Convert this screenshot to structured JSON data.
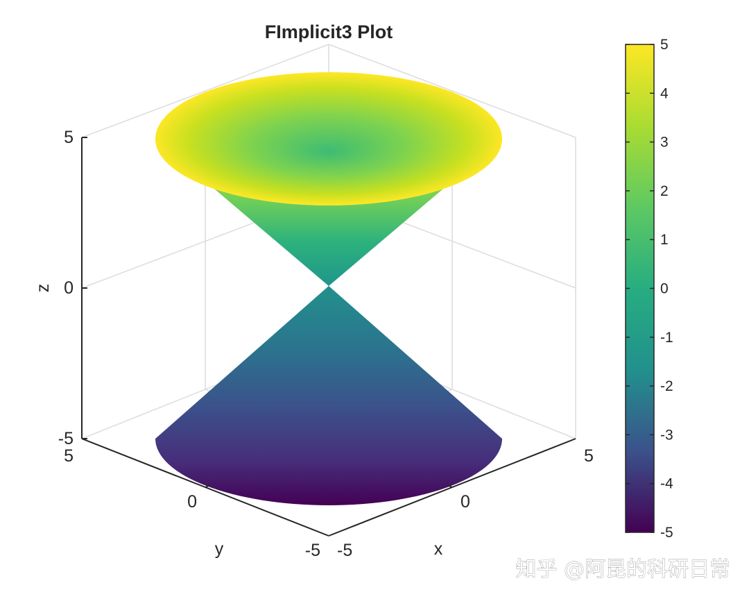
{
  "watermark": "知乎 @阿昆的科研日常",
  "chart_data": {
    "type": "surface",
    "function": "x^2 + y^2 - z^2 = 0",
    "title": "FImplicit3 Plot",
    "xlabel": "x",
    "ylabel": "y",
    "zlabel": "z",
    "xlim": [
      -5,
      5
    ],
    "ylim": [
      -5,
      5
    ],
    "zlim": [
      -5,
      5
    ],
    "x_ticks": [
      "-5",
      "0",
      "5"
    ],
    "y_ticks": [
      "-5",
      "0",
      "5"
    ],
    "z_ticks": [
      "-5",
      "0",
      "5"
    ],
    "grid": true,
    "colormap": "parula",
    "colormap_stops": [
      "#440154",
      "#3b528b",
      "#21918c",
      "#27ad81",
      "#5ec962",
      "#aadc32",
      "#fde725"
    ],
    "colorbar": {
      "location": "right",
      "limits": [
        -5,
        5
      ],
      "ticks": [
        "5",
        "4",
        "3",
        "2",
        "1",
        "0",
        "-1",
        "-2",
        "-3",
        "-4",
        "-5"
      ]
    }
  }
}
